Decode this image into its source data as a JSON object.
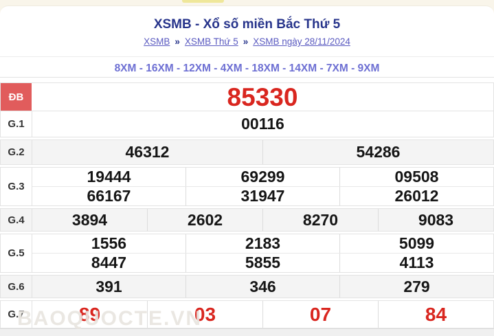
{
  "page": {
    "title": "XSMB - Xổ số miền Bắc Thứ 5",
    "breadcrumb": [
      {
        "label": "XSMB"
      },
      {
        "label": "XSMB Thứ 5"
      },
      {
        "label": "XSMB ngày 28/11/2024"
      }
    ],
    "breadcrumb_separator": "»",
    "xm_line": "8XM - 16XM - 12XM - 4XM - 18XM - 14XM - 7XM - 9XM"
  },
  "results": {
    "rows": [
      {
        "id": "db",
        "label": "ĐB",
        "highlight": true,
        "color": "red",
        "size": "xl",
        "lines": [
          [
            "85330"
          ]
        ]
      },
      {
        "id": "g1",
        "label": "G.1",
        "lines": [
          [
            "00116"
          ]
        ]
      },
      {
        "id": "g2",
        "label": "G.2",
        "shaded": true,
        "lines": [
          [
            "46312",
            "54286"
          ]
        ]
      },
      {
        "id": "g3",
        "label": "G.3",
        "lines": [
          [
            "19444",
            "69299",
            "09508"
          ],
          [
            "66167",
            "31947",
            "26012"
          ]
        ]
      },
      {
        "id": "g4",
        "label": "G.4",
        "shaded": true,
        "lines": [
          [
            "3894",
            "2602",
            "8270",
            "9083"
          ]
        ]
      },
      {
        "id": "g5",
        "label": "G.5",
        "lines": [
          [
            "1556",
            "2183",
            "5099"
          ],
          [
            "8447",
            "5855",
            "4113"
          ]
        ]
      },
      {
        "id": "g6",
        "label": "G.6",
        "shaded": true,
        "lines": [
          [
            "391",
            "346",
            "279"
          ]
        ]
      },
      {
        "id": "g7",
        "label": "G.7",
        "color": "red",
        "size": "lg",
        "lines": [
          [
            "89",
            "03",
            "07",
            "84"
          ]
        ]
      }
    ]
  },
  "watermark": "BAOQUOCTE.VN",
  "colors": {
    "title_navy": "#27348b",
    "link_purple": "#5a5ac0",
    "xm_purple": "#6d6fd3",
    "db_label_bg": "#e15c5c",
    "red_number": "#d9261f",
    "shaded_row": "#f4f4f4",
    "top_band_cream": "#f9f5ea",
    "yellow_tab": "#efe79a"
  }
}
